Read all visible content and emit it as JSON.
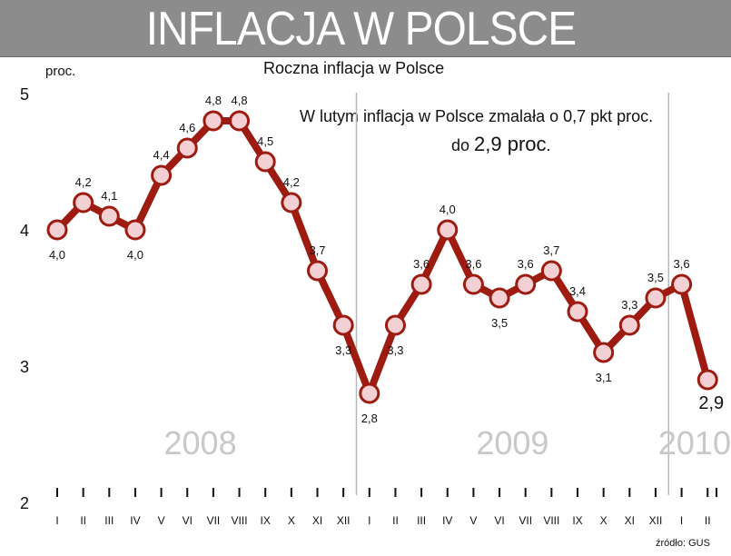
{
  "banner": {
    "title": "INFLACJA W POLSCE"
  },
  "unit_label": "proc.",
  "note": {
    "line1": "W lutym inflacja w Polsce zmalała o 0,7 pkt proc.",
    "line2_prefix": "do ",
    "line2_value": "2,9 proc",
    "line2_suffix": "."
  },
  "source": "źródło: GUS",
  "colors": {
    "banner": "#8c8c8c",
    "line": "#9e1b12",
    "marker_fill": "#f3d0d3",
    "year_label": "#c8c8c8",
    "divider": "#b8b8b8"
  },
  "chart_data": {
    "type": "line",
    "title": "Roczna inflacja w Polsce",
    "ylabel": "proc.",
    "ylim": [
      2,
      5
    ],
    "yticks": [
      "2",
      "3",
      "4",
      "5"
    ],
    "grid": false,
    "categories": [
      "I",
      "II",
      "III",
      "IV",
      "V",
      "VI",
      "VII",
      "VIII",
      "IX",
      "X",
      "XI",
      "XII",
      "I",
      "II",
      "III",
      "IV",
      "V",
      "VI",
      "VII",
      "VIII",
      "IX",
      "X",
      "XI",
      "XII",
      "I",
      "II"
    ],
    "years": [
      {
        "label": "2008",
        "start_index": 0,
        "end_index": 11
      },
      {
        "label": "2009",
        "start_index": 12,
        "end_index": 23
      },
      {
        "label": "2010",
        "start_index": 24,
        "end_index": 25
      }
    ],
    "series": [
      {
        "values": [
          4.0,
          4.2,
          4.1,
          4.0,
          4.4,
          4.6,
          4.8,
          4.8,
          4.5,
          4.2,
          3.7,
          3.3,
          2.8,
          3.3,
          3.6,
          4.0,
          3.6,
          3.5,
          3.6,
          3.7,
          3.4,
          3.1,
          3.3,
          3.5,
          3.6,
          2.9
        ],
        "labels": [
          "4,0",
          "4,2",
          "4,1",
          "4,0",
          "4,4",
          "4,6",
          "4,8",
          "4,8",
          "4,5",
          "4,2",
          "3,7",
          "3,3",
          "2,8",
          "3,3",
          "3,6",
          "4,0",
          "3,6",
          "3,5",
          "3,6",
          "3,7",
          "3,4",
          "3,1",
          "3,3",
          "3,5",
          "3,6",
          "2,9"
        ],
        "label_positions": [
          "below",
          "above",
          "above",
          "below",
          "above",
          "above",
          "above",
          "above",
          "above",
          "above",
          "above",
          "below",
          "below",
          "below",
          "above",
          "above",
          "above",
          "below",
          "above",
          "above",
          "above",
          "below",
          "above",
          "above",
          "above",
          "below"
        ]
      }
    ]
  }
}
